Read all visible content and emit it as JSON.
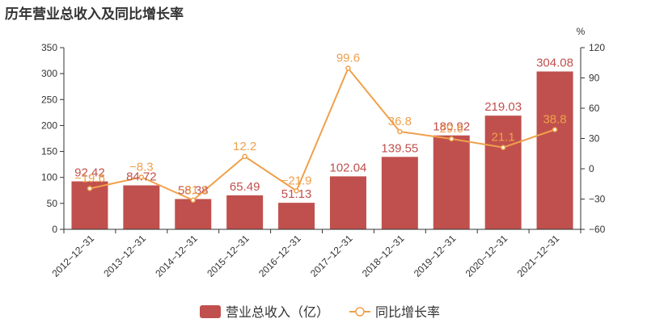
{
  "title": "历年营业总收入及同比增长率",
  "chart_data": {
    "type": "bar",
    "title": "历年营业总收入及同比增长率",
    "categories": [
      "2012-12-31",
      "2013-12-31",
      "2014-12-31",
      "2015-12-31",
      "2016-12-31",
      "2017-12-31",
      "2018-12-31",
      "2019-12-31",
      "2020-12-31",
      "2021-12-31"
    ],
    "series": [
      {
        "name": "营业总收入（亿）",
        "type": "bar",
        "axis": "left",
        "color": "#c0504d",
        "values": [
          92.42,
          84.72,
          58.38,
          65.49,
          51.13,
          102.04,
          139.55,
          180.92,
          219.03,
          304.08
        ],
        "labels": [
          "92.42",
          "84.72",
          "58.38",
          "65.49",
          "51.13",
          "102.04",
          "139.55",
          "180.92",
          "219.03",
          "304.08"
        ]
      },
      {
        "name": "同比增长率",
        "type": "line",
        "axis": "right",
        "color": "#f0a04b",
        "values": [
          -19.6,
          -8.3,
          -31.1,
          12.2,
          -21.9,
          99.6,
          36.8,
          29.6,
          21.1,
          38.8
        ],
        "labels": [
          "-19.6",
          "-8.3",
          "-31.1",
          "12.2",
          "-21.9",
          "99.6",
          "36.8",
          "29.6",
          "21.1",
          "38.8"
        ]
      }
    ],
    "y_left": {
      "min": 0,
      "max": 350,
      "ticks": [
        "0",
        "50",
        "100",
        "150",
        "200",
        "250",
        "300",
        "350"
      ]
    },
    "y_right": {
      "label": "%",
      "min": -60,
      "max": 120,
      "ticks": [
        "-60",
        "-30",
        "0",
        "30",
        "60",
        "90",
        "120"
      ]
    },
    "legend_position": "bottom",
    "grid": false
  }
}
